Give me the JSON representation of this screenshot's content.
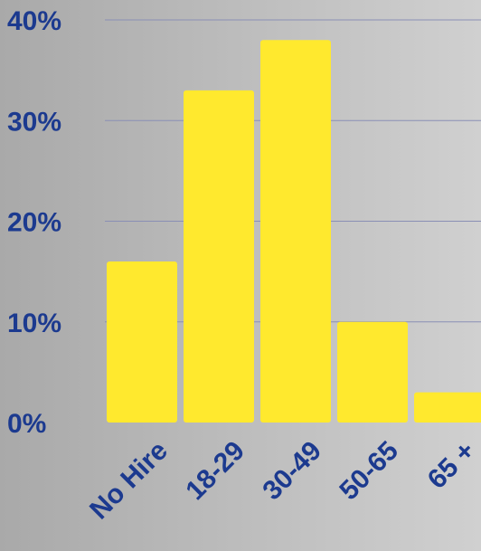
{
  "chart_data": {
    "type": "bar",
    "categories": [
      "No Hire",
      "18-29",
      "30-49",
      "50-65",
      "65 +"
    ],
    "values": [
      16,
      33,
      38,
      10,
      3
    ],
    "y_ticks": [
      "0%",
      "10%",
      "20%",
      "30%",
      "40%"
    ],
    "ylim": [
      0,
      40
    ],
    "grid": true,
    "colors": {
      "bar": "#ffe92e",
      "text": "#1c3a8f",
      "grid": "#8a8fb5"
    }
  }
}
